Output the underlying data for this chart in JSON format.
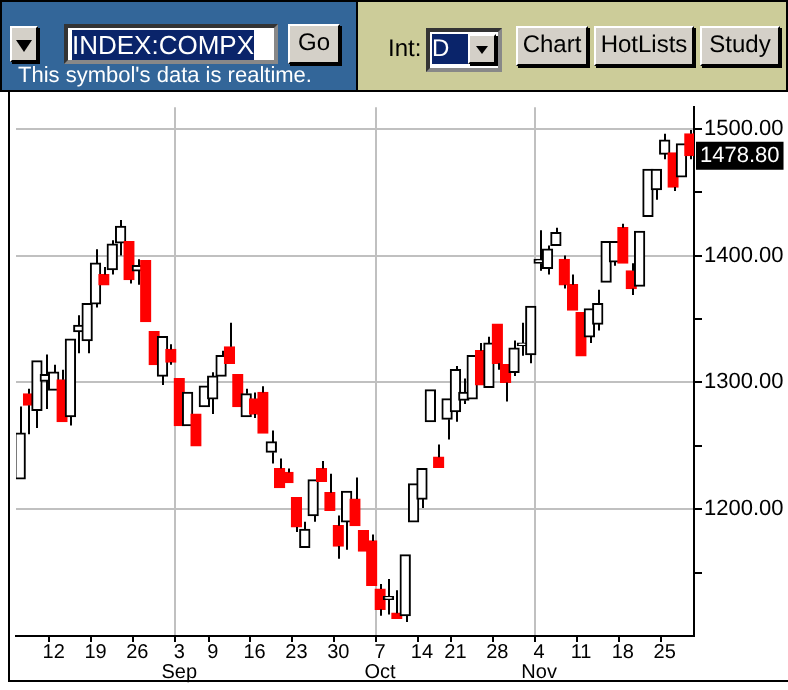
{
  "chart_data": {
    "type": "candlestick",
    "categories": [
      null,
      null,
      null,
      null,
      "12",
      null,
      null,
      null,
      null,
      "19",
      null,
      null,
      null,
      null,
      "26",
      null,
      null,
      null,
      null,
      "3\nSep",
      null,
      null,
      null,
      "9",
      null,
      null,
      null,
      null,
      "16",
      null,
      null,
      null,
      null,
      "23",
      null,
      null,
      null,
      null,
      "30",
      null,
      null,
      null,
      null,
      "7\nOct",
      null,
      null,
      null,
      null,
      "14",
      null,
      null,
      null,
      "21",
      null,
      null,
      null,
      null,
      "28",
      null,
      null,
      null,
      null,
      "4\nNov",
      null,
      null,
      null,
      null,
      "11",
      null,
      null,
      null,
      null,
      "18",
      null,
      null,
      null,
      null,
      "25",
      null,
      null,
      null
    ],
    "ohlc": [
      [
        1224,
        1281,
        1224,
        1260
      ],
      [
        1291,
        1295,
        1259,
        1282
      ],
      [
        1278,
        1317,
        1264,
        1317
      ],
      [
        1301,
        1322,
        1279,
        1306
      ],
      [
        1294,
        1314,
        1294,
        1308
      ],
      [
        1302,
        1310,
        1269,
        1269
      ],
      [
        1273,
        1334,
        1266,
        1334
      ],
      [
        1340,
        1353,
        1323,
        1345
      ],
      [
        1333,
        1362,
        1323,
        1362
      ],
      [
        1362,
        1405,
        1359,
        1394
      ],
      [
        1385,
        1391,
        1377,
        1377
      ],
      [
        1389,
        1412,
        1385,
        1409
      ],
      [
        1410,
        1428,
        1400,
        1423
      ],
      [
        1411,
        1411,
        1378,
        1381
      ],
      [
        1388,
        1397,
        1377,
        1392
      ],
      [
        1396,
        1396,
        1348,
        1348
      ],
      [
        1340,
        1340,
        1314,
        1314
      ],
      [
        1305,
        1336,
        1298,
        1336
      ],
      [
        1326,
        1330,
        1314,
        1316
      ],
      [
        1303,
        1303,
        1266,
        1266
      ],
      [
        1266,
        1292,
        1266,
        1292
      ],
      [
        1275,
        1275,
        1250,
        1250
      ],
      [
        1281,
        1297,
        1281,
        1297
      ],
      [
        1287,
        1308,
        1275,
        1305
      ],
      [
        1305,
        1325,
        1305,
        1321
      ],
      [
        1328,
        1347,
        1315,
        1315
      ],
      [
        1306,
        1306,
        1281,
        1281
      ],
      [
        1273,
        1295,
        1273,
        1291
      ],
      [
        1287,
        1292,
        1272,
        1275
      ],
      [
        1292,
        1297,
        1260,
        1260
      ],
      [
        1245,
        1262,
        1236,
        1253
      ],
      [
        1232,
        1240,
        1217,
        1217
      ],
      [
        1229,
        1232,
        1221,
        1221
      ],
      [
        1209,
        1209,
        1182,
        1186
      ],
      [
        1170,
        1190,
        1170,
        1184
      ],
      [
        1195,
        1223,
        1190,
        1223
      ],
      [
        1232,
        1238,
        1222,
        1222
      ],
      [
        1213,
        1228,
        1199,
        1199
      ],
      [
        1187,
        1195,
        1161,
        1171
      ],
      [
        1190,
        1214,
        1168,
        1214
      ],
      [
        1208,
        1225,
        1187,
        1187
      ],
      [
        1183,
        1183,
        1167,
        1167
      ],
      [
        1175,
        1180,
        1140,
        1140
      ],
      [
        1137,
        1141,
        1116,
        1121
      ],
      [
        1129,
        1145,
        1117,
        1131
      ],
      [
        1118,
        1136,
        1114,
        1114
      ],
      [
        1116,
        1164,
        1111,
        1164
      ],
      [
        1190,
        1220,
        1190,
        1220
      ],
      [
        1208,
        1232,
        1201,
        1232
      ],
      [
        1269,
        1294,
        1269,
        1294
      ],
      [
        1241,
        1251,
        1233,
        1233
      ],
      [
        1271,
        1287,
        1255,
        1287
      ],
      [
        1277,
        1313,
        1269,
        1310
      ],
      [
        1286,
        1303,
        1283,
        1292
      ],
      [
        1287,
        1321,
        1287,
        1321
      ],
      [
        1325,
        1331,
        1298,
        1298
      ],
      [
        1296,
        1336,
        1296,
        1331
      ],
      [
        1346,
        1346,
        1310,
        1315
      ],
      [
        1314,
        1314,
        1285,
        1300
      ],
      [
        1308,
        1333,
        1305,
        1327
      ],
      [
        1329,
        1347,
        1321,
        1331
      ],
      [
        1322,
        1360,
        1315,
        1360
      ],
      [
        1394,
        1420,
        1388,
        1397
      ],
      [
        1390,
        1408,
        1385,
        1405
      ],
      [
        1408,
        1422,
        1408,
        1418
      ],
      [
        1397,
        1400,
        1374,
        1377
      ],
      [
        1377,
        1385,
        1357,
        1357
      ],
      [
        1355,
        1355,
        1321,
        1321
      ],
      [
        1336,
        1358,
        1331,
        1358
      ],
      [
        1346,
        1373,
        1341,
        1362
      ],
      [
        1379,
        1411,
        1379,
        1411
      ],
      [
        1395,
        1411,
        1392,
        1411
      ],
      [
        1422,
        1425,
        1394,
        1394
      ],
      [
        1388,
        1394,
        1369,
        1374
      ],
      [
        1376,
        1419,
        1376,
        1419
      ],
      [
        1431,
        1468,
        1431,
        1468
      ],
      [
        1452,
        1468,
        1444,
        1468
      ],
      [
        1480,
        1496,
        1476,
        1491
      ],
      [
        1481,
        1481,
        1451,
        1454
      ],
      [
        1462,
        1488,
        1462,
        1488
      ],
      [
        1496,
        1499,
        1476,
        1478.8
      ]
    ],
    "colors": [
      "#000000",
      "#ff0000",
      "#000000",
      "#000000",
      "#000000",
      "#ff0000",
      "#000000",
      "#000000",
      "#000000",
      "#000000",
      "#ff0000",
      "#000000",
      "#000000",
      "#ff0000",
      "#000000",
      "#ff0000",
      "#ff0000",
      "#000000",
      "#ff0000",
      "#ff0000",
      "#000000",
      "#ff0000",
      "#000000",
      "#000000",
      "#000000",
      "#ff0000",
      "#ff0000",
      "#000000",
      "#ff0000",
      "#ff0000",
      "#000000",
      "#ff0000",
      "#ff0000",
      "#ff0000",
      "#000000",
      "#000000",
      "#ff0000",
      "#ff0000",
      "#ff0000",
      "#000000",
      "#ff0000",
      "#ff0000",
      "#ff0000",
      "#ff0000",
      "#000000",
      "#ff0000",
      "#000000",
      "#000000",
      "#000000",
      "#000000",
      "#ff0000",
      "#000000",
      "#000000",
      "#000000",
      "#000000",
      "#ff0000",
      "#000000",
      "#ff0000",
      "#ff0000",
      "#000000",
      "#000000",
      "#000000",
      "#000000",
      "#000000",
      "#000000",
      "#ff0000",
      "#ff0000",
      "#ff0000",
      "#000000",
      "#000000",
      "#000000",
      "#000000",
      "#ff0000",
      "#ff0000",
      "#000000",
      "#000000",
      "#000000",
      "#000000",
      "#ff0000",
      "#000000",
      "#ff0000"
    ],
    "ylim": [
      1100,
      1517
    ],
    "yticks": [
      {
        "value": 1150,
        "label": null
      },
      {
        "value": 1200,
        "label": "1200.00"
      },
      {
        "value": 1250,
        "label": null
      },
      {
        "value": 1300,
        "label": "1300.00"
      },
      {
        "value": 1350,
        "label": null
      },
      {
        "value": 1400,
        "label": "1400.00"
      },
      {
        "value": 1450,
        "label": null
      },
      {
        "value": 1500,
        "label": "1500.00"
      }
    ],
    "grid": true,
    "annotations": [
      "INDEX:COMPX",
      "Go",
      "This symbol's data is realtime.",
      "Int:",
      "D",
      "Chart",
      "HotLists",
      "Study",
      "1478.80"
    ]
  }
}
